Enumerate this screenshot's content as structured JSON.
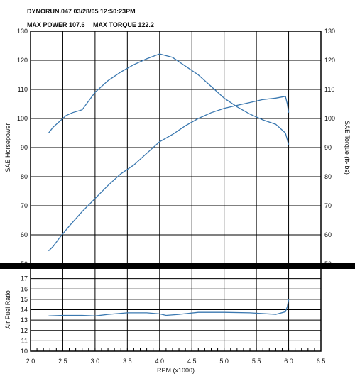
{
  "header": {
    "run": "DYNORUN.047 03/28/05   12:50:23PM",
    "max_power_label": "MAX POWER 107.6",
    "max_torque_label": "MAX TORQUE 122.2"
  },
  "colors": {
    "curve": "#3a78b0",
    "frame": "#000000",
    "grid": "#000000",
    "paper": "#ffffff"
  },
  "chart_data": [
    {
      "type": "line",
      "title": "",
      "xlabel": "RPM (x1000)",
      "ylabel": "SAE Horsepower",
      "y2label": "SAE Torque (ft-lbs)",
      "xlim": [
        2.0,
        6.5
      ],
      "ylim": [
        50,
        130
      ],
      "y2lim": [
        50,
        130
      ],
      "xticks": [
        "2.0",
        "2.5",
        "3.0",
        "3.5",
        "4.0",
        "4.5",
        "5.0",
        "5.5",
        "6.0",
        "6.5"
      ],
      "yticks": [
        "50",
        "60",
        "70",
        "80",
        "90",
        "100",
        "110",
        "120",
        "130"
      ],
      "y2ticks": [
        "50",
        "60",
        "70",
        "80",
        "90",
        "100",
        "110",
        "120",
        "130"
      ],
      "grid": true,
      "series": [
        {
          "axis": "left",
          "x": [
            2.28,
            2.35,
            2.45,
            2.6,
            2.8,
            3.0,
            3.2,
            3.4,
            3.6,
            3.8,
            4.0,
            4.2,
            4.4,
            4.6,
            4.8,
            5.0,
            5.2,
            5.4,
            5.6,
            5.8,
            5.95,
            5.98,
            6.0
          ],
          "values": [
            54.5,
            56,
            59,
            63,
            68,
            72.5,
            77,
            81,
            84,
            88,
            92,
            94.5,
            97.5,
            100,
            102,
            103.5,
            104.5,
            105.5,
            106.5,
            107,
            107.6,
            105,
            102
          ]
        },
        {
          "axis": "right",
          "x": [
            2.28,
            2.35,
            2.45,
            2.55,
            2.65,
            2.8,
            3.0,
            3.2,
            3.4,
            3.6,
            3.8,
            4.0,
            4.2,
            4.4,
            4.6,
            4.8,
            5.0,
            5.2,
            5.4,
            5.6,
            5.8,
            5.95,
            6.0
          ],
          "values": [
            95,
            97,
            99,
            101,
            102,
            103,
            109,
            113,
            116,
            118.5,
            120.5,
            122.2,
            121,
            118,
            115,
            111,
            107,
            104,
            101.5,
            99.5,
            98,
            95,
            91
          ]
        }
      ]
    },
    {
      "type": "line",
      "title": "",
      "xlabel": "RPM (x1000)",
      "ylabel": "Air Fuel Ratio",
      "xlim": [
        2.0,
        6.5
      ],
      "ylim": [
        10,
        18
      ],
      "yticks": [
        "10",
        "11",
        "12",
        "13",
        "14",
        "15",
        "16",
        "17"
      ],
      "grid": true,
      "series": [
        {
          "x": [
            2.28,
            2.5,
            2.8,
            3.0,
            3.2,
            3.5,
            3.8,
            4.0,
            4.1,
            4.3,
            4.6,
            5.0,
            5.4,
            5.8,
            5.95,
            5.98,
            6.0
          ],
          "values": [
            13.4,
            13.45,
            13.45,
            13.4,
            13.55,
            13.7,
            13.7,
            13.6,
            13.45,
            13.55,
            13.75,
            13.75,
            13.7,
            13.55,
            13.8,
            14.3,
            15.0
          ]
        }
      ]
    }
  ]
}
